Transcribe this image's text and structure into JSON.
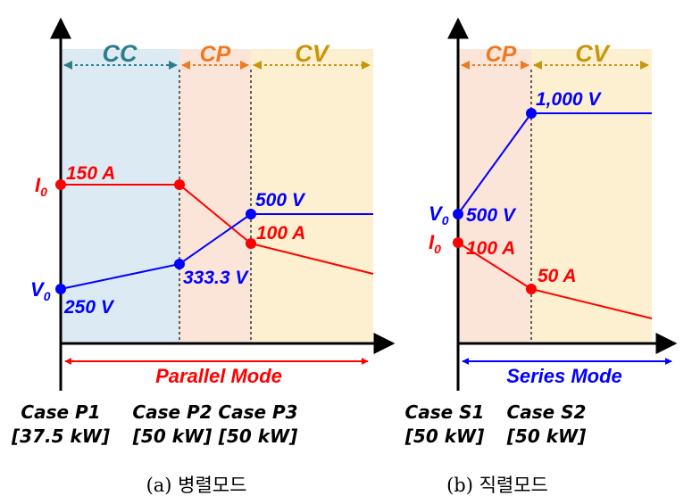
{
  "colors": {
    "cc_fill": "#dcebf3",
    "cp_fill": "#fbe5d8",
    "cv_fill": "#fdf0d0",
    "cc_label": "#2e7d8e",
    "cp_label": "#f07820",
    "cv_label": "#c8960c",
    "current": "#ff0000",
    "voltage": "#0000ff",
    "parallel_arrow": "#ff0000",
    "series_arrow": "#0000ff"
  },
  "parallel": {
    "regions": {
      "cc": "CC",
      "cp": "CP",
      "cv": "CV"
    },
    "mode_label": "Parallel Mode",
    "i0": "I",
    "v0": "V",
    "sub": "0",
    "labels": {
      "i_150": "150 A",
      "i_100": "100 A",
      "v_250": "250 V",
      "v_333": "333.3 V",
      "v_500": "500 V"
    },
    "cases": [
      {
        "name": "Case P1",
        "power": "[37.5 kW]"
      },
      {
        "name": "Case P2",
        "power": "[50 kW]"
      },
      {
        "name": "Case P3",
        "power": "[50 kW]"
      }
    ],
    "caption": "(a)  병렬모드"
  },
  "series": {
    "regions": {
      "cp": "CP",
      "cv": "CV"
    },
    "mode_label": "Series Mode",
    "i0": "I",
    "v0": "V",
    "sub": "0",
    "labels": {
      "v_500": "500 V",
      "v_1000": "1,000 V",
      "i_100": "100 A",
      "i_50": "50 A"
    },
    "cases": [
      {
        "name": "Case S1",
        "power": "[50 kW]"
      },
      {
        "name": "Case S2",
        "power": "[50 kW]"
      }
    ],
    "caption": "(b)  직렬모드"
  }
}
